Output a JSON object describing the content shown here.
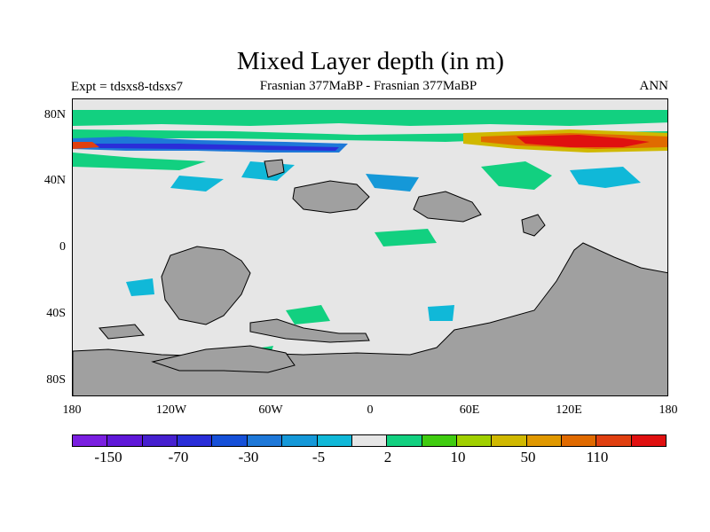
{
  "title": "Mixed Layer depth (in m)",
  "left_string": "Expt = tdsxs8-tdsxs7",
  "center_string": "Frasnian 377MaBP - Frasnian 377MaBP",
  "right_string": "ANN",
  "y_ticks": [
    "80N",
    "40N",
    "0",
    "40S",
    "80S"
  ],
  "x_ticks": [
    "180",
    "120W",
    "60W",
    "0",
    "60E",
    "120E",
    "180"
  ],
  "colorbar": {
    "colors": [
      "#7a1fe0",
      "#5f18d8",
      "#4620cf",
      "#2a2ed8",
      "#1650d8",
      "#1e78d8",
      "#1598d8",
      "#10b8d8",
      "#e6e6e6",
      "#12d080",
      "#40cc10",
      "#a0d000",
      "#d0b800",
      "#e09800",
      "#e06a00",
      "#e04010",
      "#e01010"
    ],
    "labels": [
      "-150",
      "-70",
      "-30",
      "-5",
      "2",
      "10",
      "50",
      "110"
    ]
  },
  "colors": {
    "background": "#e6e6e6",
    "land": "#a0a0a0",
    "coast": "#000000"
  }
}
